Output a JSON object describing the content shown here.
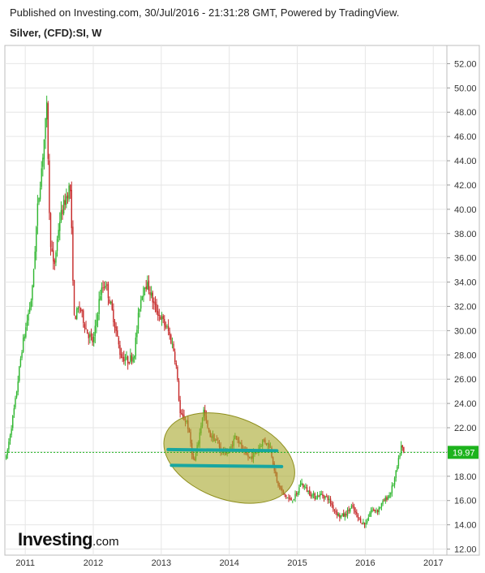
{
  "header": {
    "published": "Published on Investing.com, 30/Jul/2016 - 21:31:28 GMT, Powered by TradingView.",
    "symbol": "Silver, (CFD):SI, W"
  },
  "logo": {
    "brand": "Investing",
    "suffix": ".com"
  },
  "colors": {
    "up": "#2fb62f",
    "down": "#c62a2a",
    "price_line": "#1db31d",
    "price_label_bg": "#1db31d",
    "ellipse_fill": "#a7a72a",
    "ellipse_stroke": "#8e8e1c",
    "trend_line": "#18a6a0",
    "grid": "#e6e6e6"
  },
  "chart_data": {
    "type": "candlestick",
    "interval": "weekly",
    "current_price": "19.97",
    "ylim": [
      11.5,
      53.5
    ],
    "xlim": [
      2010.7,
      2017.2
    ],
    "y_ticks": [
      "12.00",
      "14.00",
      "16.00",
      "18.00",
      "20.00",
      "22.00",
      "24.00",
      "26.00",
      "28.00",
      "30.00",
      "32.00",
      "34.00",
      "36.00",
      "38.00",
      "40.00",
      "42.00",
      "44.00",
      "46.00",
      "48.00",
      "50.00",
      "52.00"
    ],
    "x_ticks": [
      "2011",
      "2012",
      "2013",
      "2014",
      "2015",
      "2016",
      "2017"
    ],
    "price_path": [
      [
        2010.72,
        19.5
      ],
      [
        2010.85,
        24.0
      ],
      [
        2010.95,
        28.5
      ],
      [
        2011.0,
        30.0
      ],
      [
        2011.1,
        33.0
      ],
      [
        2011.18,
        40.0
      ],
      [
        2011.25,
        44.0
      ],
      [
        2011.32,
        48.5
      ],
      [
        2011.36,
        38.0
      ],
      [
        2011.42,
        35.0
      ],
      [
        2011.5,
        39.0
      ],
      [
        2011.6,
        41.0
      ],
      [
        2011.66,
        42.0
      ],
      [
        2011.72,
        31.0
      ],
      [
        2011.8,
        32.0
      ],
      [
        2011.9,
        30.0
      ],
      [
        2012.0,
        29.0
      ],
      [
        2012.1,
        33.0
      ],
      [
        2012.18,
        34.0
      ],
      [
        2012.3,
        31.0
      ],
      [
        2012.4,
        28.0
      ],
      [
        2012.5,
        27.5
      ],
      [
        2012.6,
        28.0
      ],
      [
        2012.68,
        32.0
      ],
      [
        2012.75,
        34.0
      ],
      [
        2012.82,
        33.5
      ],
      [
        2012.9,
        32.0
      ],
      [
        2013.0,
        31.0
      ],
      [
        2013.1,
        30.0
      ],
      [
        2013.18,
        28.5
      ],
      [
        2013.22,
        27.0
      ],
      [
        2013.28,
        23.0
      ],
      [
        2013.38,
        22.5
      ],
      [
        2013.48,
        19.0
      ],
      [
        2013.55,
        21.0
      ],
      [
        2013.62,
        23.5
      ],
      [
        2013.7,
        21.5
      ],
      [
        2013.8,
        21.0
      ],
      [
        2013.9,
        20.0
      ],
      [
        2014.0,
        20.0
      ],
      [
        2014.1,
        21.5
      ],
      [
        2014.2,
        20.0
      ],
      [
        2014.3,
        19.5
      ],
      [
        2014.4,
        20.0
      ],
      [
        2014.5,
        21.0
      ],
      [
        2014.6,
        20.5
      ],
      [
        2014.7,
        17.5
      ],
      [
        2014.8,
        16.5
      ],
      [
        2014.9,
        16.0
      ],
      [
        2015.0,
        16.5
      ],
      [
        2015.05,
        17.5
      ],
      [
        2015.15,
        16.8
      ],
      [
        2015.25,
        16.3
      ],
      [
        2015.35,
        16.5
      ],
      [
        2015.45,
        16.2
      ],
      [
        2015.55,
        15.2
      ],
      [
        2015.62,
        14.7
      ],
      [
        2015.7,
        14.8
      ],
      [
        2015.8,
        15.5
      ],
      [
        2015.9,
        14.5
      ],
      [
        2016.0,
        14.0
      ],
      [
        2016.08,
        15.2
      ],
      [
        2016.18,
        15.2
      ],
      [
        2016.28,
        16.0
      ],
      [
        2016.36,
        16.5
      ],
      [
        2016.42,
        17.5
      ],
      [
        2016.48,
        19.0
      ],
      [
        2016.53,
        20.5
      ],
      [
        2016.57,
        19.8
      ]
    ],
    "annotations": {
      "ellipse": {
        "center": [
          2014.0,
          19.5
        ],
        "rx_years": 1.0,
        "ry_price": 3.4,
        "rotation_deg": 20
      },
      "lines": [
        {
          "x0": 2013.1,
          "x1": 2014.7,
          "y0": 20.2,
          "y1": 20.1
        },
        {
          "x0": 2013.15,
          "x1": 2014.77,
          "y0": 18.9,
          "y1": 18.8
        }
      ]
    }
  }
}
